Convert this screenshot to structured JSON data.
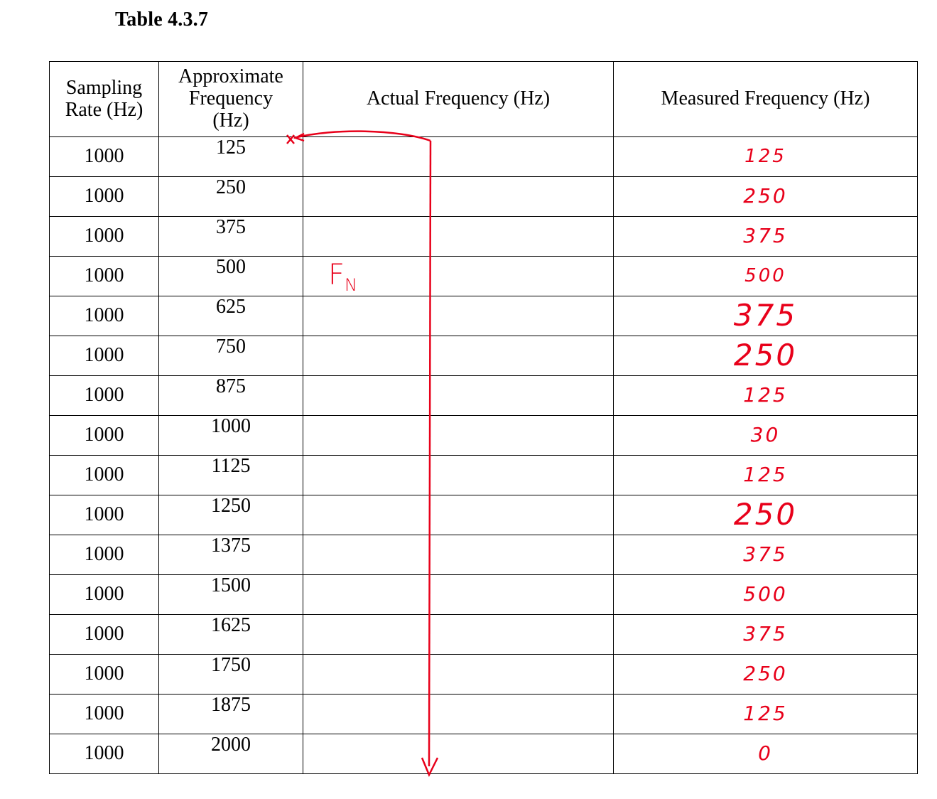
{
  "caption": "Table 4.3.7",
  "headers": {
    "rate": "Sampling Rate (Hz)",
    "approx": "Approximate Frequency (Hz)",
    "actual": "Actual Frequency (Hz)",
    "measured": "Measured Frequency (Hz)"
  },
  "rows": [
    {
      "rate": "1000",
      "approx": "125",
      "actual": "",
      "measured": "125"
    },
    {
      "rate": "1000",
      "approx": "250",
      "actual": "",
      "measured": "250"
    },
    {
      "rate": "1000",
      "approx": "375",
      "actual": "",
      "measured": "375"
    },
    {
      "rate": "1000",
      "approx": "500",
      "actual": "",
      "measured": "500"
    },
    {
      "rate": "1000",
      "approx": "625",
      "actual": "",
      "measured": "375"
    },
    {
      "rate": "1000",
      "approx": "750",
      "actual": "",
      "measured": "250"
    },
    {
      "rate": "1000",
      "approx": "875",
      "actual": "",
      "measured": "125"
    },
    {
      "rate": "1000",
      "approx": "1000",
      "actual": "",
      "measured": "30"
    },
    {
      "rate": "1000",
      "approx": "1125",
      "actual": "",
      "measured": "125"
    },
    {
      "rate": "1000",
      "approx": "1250",
      "actual": "",
      "measured": "250"
    },
    {
      "rate": "1000",
      "approx": "1375",
      "actual": "",
      "measured": "375"
    },
    {
      "rate": "1000",
      "approx": "1500",
      "actual": "",
      "measured": "500"
    },
    {
      "rate": "1000",
      "approx": "1625",
      "actual": "",
      "measured": "375"
    },
    {
      "rate": "1000",
      "approx": "1750",
      "actual": "",
      "measured": "250"
    },
    {
      "rate": "1000",
      "approx": "1875",
      "actual": "",
      "measured": "125"
    },
    {
      "rate": "1000",
      "approx": "2000",
      "actual": "",
      "measured": "0"
    }
  ],
  "annotation": {
    "label_main": "F",
    "label_sub": "N",
    "color": "#e8001a"
  }
}
